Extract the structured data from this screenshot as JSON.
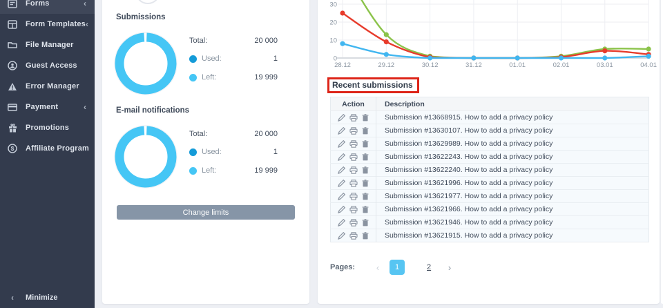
{
  "colors": {
    "donut_left": "#45c6f5",
    "donut_used": "#149bd8",
    "chart_green": "#8bc34a",
    "chart_red": "#e73b2b",
    "chart_blue": "#41b6f0",
    "annotation_red": "#dd2418",
    "pagination_active": "#57c5f2",
    "button": "#8695a7"
  },
  "sidebar": {
    "items": [
      {
        "label": "Forms",
        "icon": "forms-icon",
        "chevron": "‹",
        "active": true
      },
      {
        "label": "Form Templates",
        "icon": "form-templates-icon",
        "chevron": "‹",
        "active": false
      },
      {
        "label": "File Manager",
        "icon": "file-manager-icon",
        "chevron": "",
        "active": false
      },
      {
        "label": "Guest Access",
        "icon": "guest-access-icon",
        "chevron": "",
        "active": false
      },
      {
        "label": "Error Manager",
        "icon": "error-manager-icon",
        "chevron": "",
        "active": false
      },
      {
        "label": "Payment",
        "icon": "payment-icon",
        "chevron": "‹",
        "active": false
      },
      {
        "label": "Promotions",
        "icon": "promotions-icon",
        "chevron": "",
        "active": false
      },
      {
        "label": "Affiliate Program",
        "icon": "affiliate-program-icon",
        "chevron": "",
        "active": false
      }
    ],
    "minimize": {
      "label": "Minimize",
      "chevron": "‹"
    }
  },
  "limits_panel": {
    "submissions": {
      "title": "Submissions",
      "total_label": "Total:",
      "total_value": "20 000",
      "used_label": "Used:",
      "used_value": "1",
      "left_label": "Left:",
      "left_value": "19 999"
    },
    "email": {
      "title": "E-mail notifications",
      "total_label": "Total:",
      "total_value": "20 000",
      "used_label": "Used:",
      "used_value": "1",
      "left_label": "Left:",
      "left_value": "19 999"
    },
    "change_limits_label": "Change limits"
  },
  "main_panel": {
    "recent": {
      "title": "Recent submissions",
      "columns": [
        "Action",
        "Description"
      ],
      "action_icons": [
        "edit-icon",
        "print-icon",
        "delete-icon"
      ],
      "rows": [
        "Submission #13668915. How to add a privacy policy",
        "Submission #13630107. How to add a privacy policy",
        "Submission #13629989. How to add a privacy policy",
        "Submission #13622243. How to add a privacy policy",
        "Submission #13622240. How to add a privacy policy",
        "Submission #13621996. How to add a privacy policy",
        "Submission #13621977. How to add a privacy policy",
        "Submission #13621966. How to add a privacy policy",
        "Submission #13621946. How to add a privacy policy",
        "Submission #13621915. How to add a privacy policy"
      ]
    },
    "pagination": {
      "label": "Pages:",
      "prev": "‹",
      "next": "›",
      "pages": [
        "1",
        "2"
      ],
      "active_page": "1"
    }
  },
  "chart_data": [
    {
      "type": "line",
      "title": "Submissions per day (top of chart cropped in view)",
      "x": [
        "28.12",
        "29.12",
        "30.12",
        "31.12",
        "01.01",
        "02.01",
        "03.01",
        "04.01"
      ],
      "series": [
        {
          "name": "green",
          "color": "#8bc34a",
          "values": [
            50,
            13,
            1,
            0,
            0,
            1,
            5,
            5
          ]
        },
        {
          "name": "red",
          "color": "#e73b2b",
          "values": [
            25,
            9,
            0.5,
            0,
            0,
            0.5,
            4,
            2
          ]
        },
        {
          "name": "blue",
          "color": "#41b6f0",
          "values": [
            8,
            2,
            0,
            0,
            0,
            0,
            0,
            1
          ]
        }
      ],
      "yticks": [
        0,
        10,
        20,
        30
      ],
      "grid": true,
      "legend_position": "none-visible"
    },
    {
      "type": "donut",
      "title": "Submissions",
      "total": 20000,
      "used": 1,
      "left": 19999,
      "colors": {
        "used": "#149bd8",
        "left": "#45c6f5"
      }
    },
    {
      "type": "donut",
      "title": "E-mail notifications",
      "total": 20000,
      "used": 1,
      "left": 19999,
      "colors": {
        "used": "#149bd8",
        "left": "#45c6f5"
      }
    }
  ]
}
